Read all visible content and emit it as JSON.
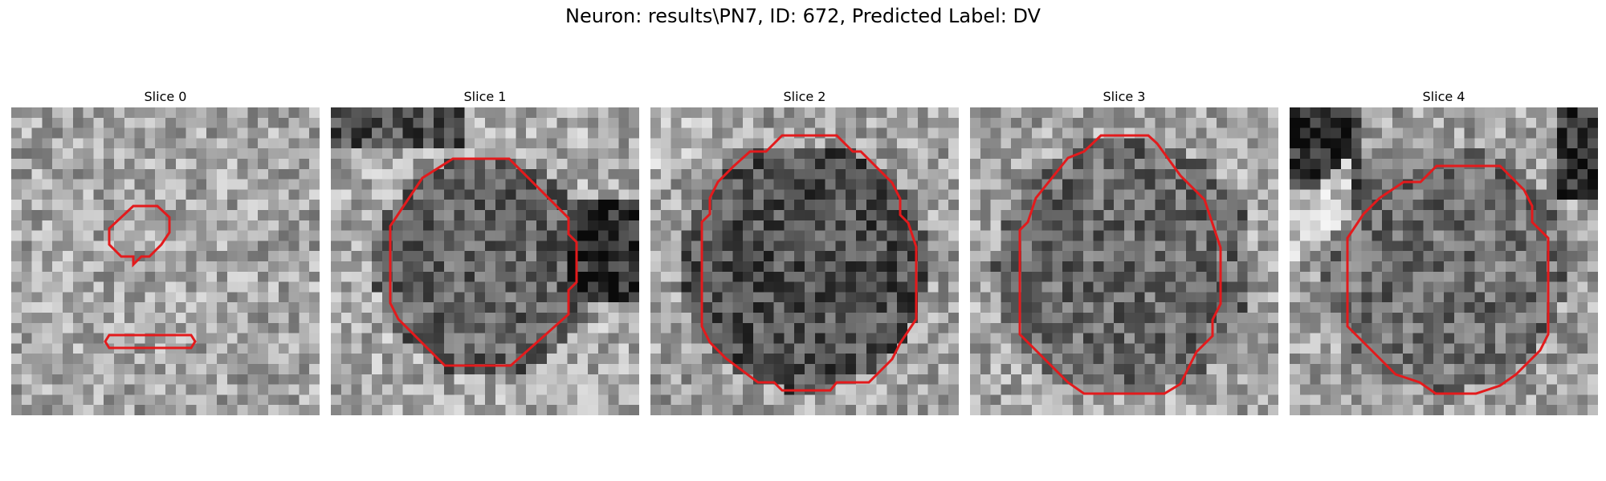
{
  "figure": {
    "title": "Neuron: results\\PN7, ID: 672, Predicted Label: DV"
  },
  "panels": [
    {
      "title": "Slice 0"
    },
    {
      "title": "Slice 1"
    },
    {
      "title": "Slice 2"
    },
    {
      "title": "Slice 3"
    },
    {
      "title": "Slice 4"
    }
  ],
  "colors": {
    "contour": "#e31a1c"
  }
}
